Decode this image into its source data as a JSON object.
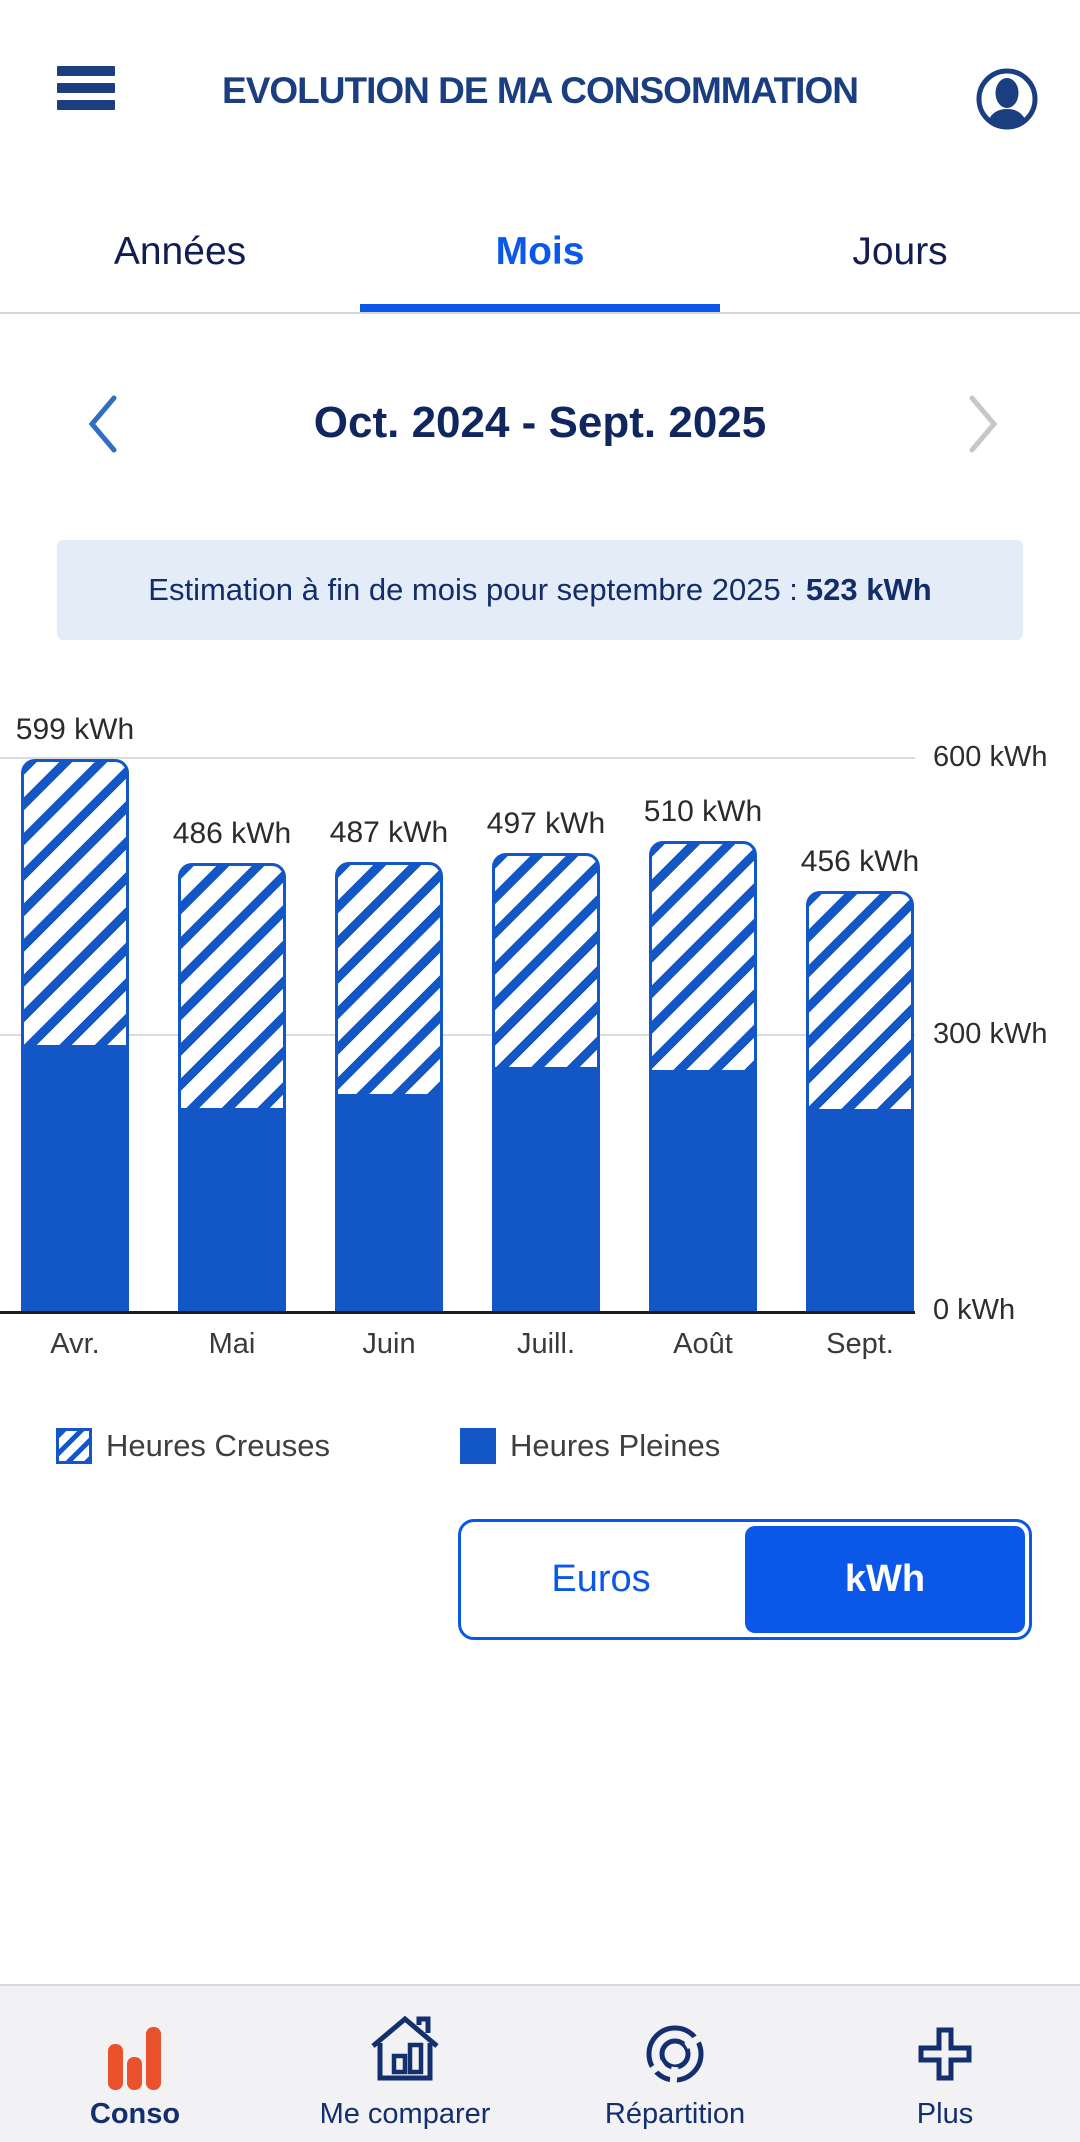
{
  "header": {
    "title": "EVOLUTION DE MA CONSOMMATION"
  },
  "tabs": [
    {
      "label": "Années",
      "active": false
    },
    {
      "label": "Mois",
      "active": true
    },
    {
      "label": "Jours",
      "active": false
    }
  ],
  "period": {
    "label": "Oct. 2024 - Sept. 2025"
  },
  "estimation": {
    "text": "Estimation à fin de mois pour septembre 2025 :",
    "value": "523 kWh"
  },
  "chart_data": {
    "type": "bar",
    "stacked": true,
    "categories": [
      "Avr.",
      "Mai",
      "Juin",
      "Juill.",
      "Août",
      "Sept."
    ],
    "series": [
      {
        "name": "Heures Pleines",
        "style": "solid",
        "values": [
          285,
          217,
          232,
          261,
          258,
          216
        ]
      },
      {
        "name": "Heures Creuses",
        "style": "hatched",
        "values": [
          314,
          269,
          255,
          236,
          252,
          240
        ]
      }
    ],
    "totals": [
      599,
      486,
      487,
      497,
      510,
      456
    ],
    "total_labels": [
      "599 kWh",
      "486 kWh",
      "487 kWh",
      "497 kWh",
      "510 kWh",
      "456 kWh"
    ],
    "unit": "kWh",
    "ylim": [
      0,
      600
    ],
    "yticks": [
      {
        "value": 600,
        "label": "600 kWh"
      },
      {
        "value": 300,
        "label": "300 kWh"
      },
      {
        "value": 0,
        "label": "0 kWh"
      }
    ],
    "grid": "horizontal",
    "legend_position": "bottom"
  },
  "legend": [
    {
      "label": "Heures Creuses",
      "swatch": "hatched"
    },
    {
      "label": "Heures Pleines",
      "swatch": "solid"
    }
  ],
  "unit_toggle": {
    "options": [
      "Euros",
      "kWh"
    ],
    "selected": "kWh"
  },
  "bottom_nav": [
    {
      "label": "Conso",
      "icon": "bar-chart-icon",
      "active": true
    },
    {
      "label": "Me comparer",
      "icon": "house-chart-icon",
      "active": false
    },
    {
      "label": "Répartition",
      "icon": "donut-chart-icon",
      "active": false
    },
    {
      "label": "Plus",
      "icon": "plus-icon",
      "active": false
    }
  ],
  "colors": {
    "navy": "#142f6d",
    "navy_title": "#1a3e80",
    "accent_blue": "#0b58e8",
    "bar_blue": "#1356c5",
    "banner_bg": "#e4edf7",
    "conso_orange": "#e9522c",
    "chevron_disabled": "#c7c7c9"
  }
}
